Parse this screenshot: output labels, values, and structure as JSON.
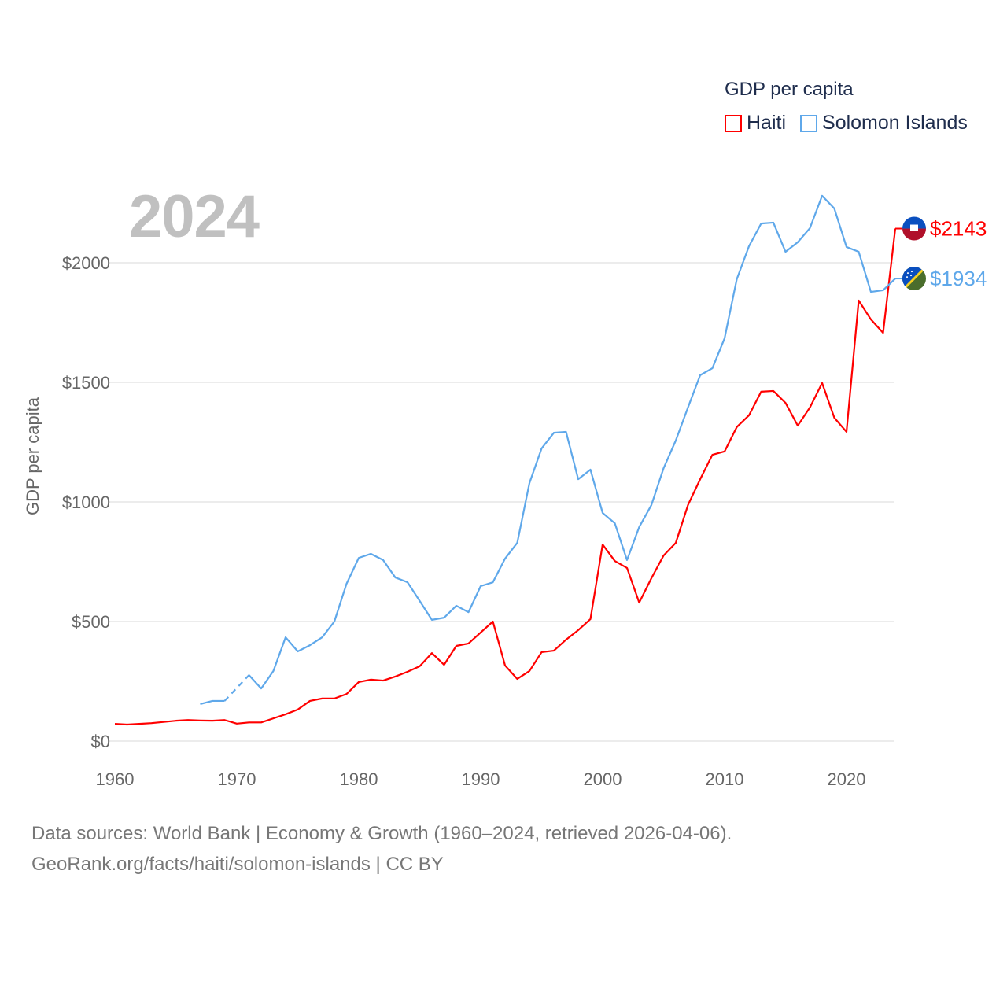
{
  "chart_data": {
    "type": "line",
    "title": "GDP per capita",
    "year_label": "2024",
    "ylabel": "GDP per capita",
    "xlabel": "",
    "xlim": [
      1960,
      2024
    ],
    "ylim": [
      0,
      2300
    ],
    "x_ticks": [
      "1960",
      "1970",
      "1980",
      "1990",
      "2000",
      "2010",
      "2020"
    ],
    "y_ticks": [
      {
        "value": 0,
        "label": "$0"
      },
      {
        "value": 500,
        "label": "$500"
      },
      {
        "value": 1000,
        "label": "$1000"
      },
      {
        "value": 1500,
        "label": "$1500"
      },
      {
        "value": 2000,
        "label": "$2000"
      }
    ],
    "grid": true,
    "legend_position": "top-right",
    "x": [
      1960,
      1961,
      1962,
      1963,
      1964,
      1965,
      1966,
      1967,
      1968,
      1969,
      1970,
      1971,
      1972,
      1973,
      1974,
      1975,
      1976,
      1977,
      1978,
      1979,
      1980,
      1981,
      1982,
      1983,
      1984,
      1985,
      1986,
      1987,
      1988,
      1989,
      1990,
      1991,
      1992,
      1993,
      1994,
      1995,
      1996,
      1997,
      1998,
      1999,
      2000,
      2001,
      2002,
      2003,
      2004,
      2005,
      2006,
      2007,
      2008,
      2009,
      2010,
      2011,
      2012,
      2013,
      2014,
      2015,
      2016,
      2017,
      2018,
      2019,
      2020,
      2021,
      2022,
      2023,
      2024
    ],
    "series": [
      {
        "name": "Haiti",
        "color": "#ff0000",
        "end_label": "$2143",
        "flag": "haiti-flag",
        "values": [
          72,
          69,
          72,
          75,
          80,
          85,
          88,
          86,
          85,
          88,
          73,
          78,
          78,
          95,
          112,
          132,
          168,
          178,
          178,
          197,
          247,
          257,
          253,
          270,
          290,
          313,
          368,
          319,
          398,
          408,
          454,
          500,
          316,
          260,
          293,
          372,
          378,
          424,
          464,
          510,
          822,
          753,
          724,
          579,
          681,
          776,
          829,
          987,
          1095,
          1197,
          1211,
          1313,
          1362,
          1461,
          1464,
          1414,
          1319,
          1395,
          1497,
          1352,
          1293,
          1842,
          1763,
          1707,
          2143
        ]
      },
      {
        "name": "Solomon Islands",
        "color": "#5fa8ea",
        "end_label": "$1934",
        "flag": "solomon-islands-flag",
        "values": [
          null,
          null,
          null,
          null,
          null,
          null,
          null,
          155,
          168,
          168,
          null,
          276,
          220,
          293,
          434,
          375,
          401,
          434,
          500,
          658,
          766,
          783,
          757,
          684,
          664,
          586,
          507,
          516,
          566,
          539,
          648,
          664,
          763,
          829,
          1079,
          1224,
          1289,
          1293,
          1095,
          1135,
          954,
          911,
          757,
          895,
          987,
          1141,
          1257,
          1395,
          1530,
          1559,
          1684,
          1931,
          2069,
          2164,
          2168,
          2046,
          2086,
          2145,
          2280,
          2227,
          2066,
          2046,
          1878,
          1885,
          1934
        ]
      }
    ]
  },
  "footer": {
    "line1": "Data sources: World Bank | Economy & Growth (1960–2024, retrieved 2026-04-06).",
    "line2": "GeoRank.org/facts/haiti/solomon-islands | CC BY"
  }
}
